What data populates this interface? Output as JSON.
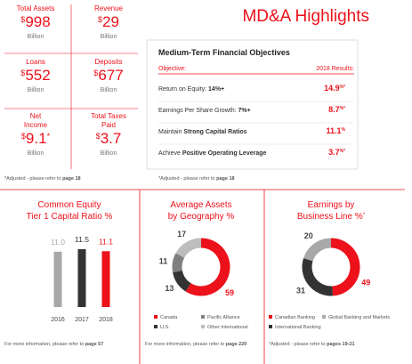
{
  "header": {
    "title": "MD&A Highlights"
  },
  "metrics": [
    {
      "label": [
        "Total Assets"
      ],
      "currency": "$",
      "amount": 998,
      "unit": "Billion"
    },
    {
      "label": [
        "Revenue"
      ],
      "currency": "$",
      "amount": 29,
      "unit": "Billion"
    },
    {
      "label": [
        "Loans"
      ],
      "currency": "$",
      "amount": 552,
      "unit": "Billion"
    },
    {
      "label": [
        "Deposits"
      ],
      "currency": "$",
      "amount": 677,
      "unit": "Billion"
    },
    {
      "label": [
        "Net",
        "Income"
      ],
      "currency": "$",
      "amount": 9.1,
      "note": "*",
      "unit": "Billion"
    },
    {
      "label": [
        "Total Taxes",
        "Paid"
      ],
      "currency": "$",
      "amount": 3.7,
      "unit": "Billion"
    }
  ],
  "metrics_footnote": {
    "text": "*Adjusted - please refer to ",
    "link": "page 18"
  },
  "objectives": {
    "title": "Medium-Term Financial Objectives",
    "header": [
      "Objective:",
      "2018 Results:"
    ],
    "rows": [
      {
        "lead": "Return on Equity: ",
        "bold": "14%+",
        "result": 14.9,
        "result_note": "%*"
      },
      {
        "lead": "Earnings Per Share Growth: ",
        "bold": "7%+",
        "result": 8.7,
        "result_note": "%*"
      },
      {
        "lead": "Maintain ",
        "bold": "Strong Capital Ratios",
        "result": 11.1,
        "result_note": "%"
      },
      {
        "lead": "Achieve ",
        "bold": "Positive Operating Leverage",
        "result": 3.7,
        "result_note": "%*"
      }
    ],
    "footnote": {
      "text": "*Adjusted - please refer to ",
      "link": "page 18"
    }
  },
  "capital_ratio": {
    "title": [
      "Common Equity",
      "Tier 1 Capital Ratio %"
    ],
    "categories": [
      "2016",
      "2017",
      "2018"
    ],
    "values": [
      11.0,
      11.5,
      11.1
    ],
    "value_labels": [
      "11.0",
      "11.5",
      "11.1"
    ],
    "colors": [
      "#a8a8a8",
      "#333333",
      "#ec111a"
    ],
    "footnote": {
      "text": "For more information, please refer to ",
      "link": "page 57"
    }
  },
  "geography": {
    "title": [
      "Average Assets",
      "by Geography %"
    ],
    "segments": [
      {
        "name": "Canada",
        "value": 59,
        "color": "#ec111a"
      },
      {
        "name": "U.S.",
        "value": 13,
        "color": "#333333"
      },
      {
        "name": "Pacific Alliance",
        "value": 11,
        "color": "#7f7f7f"
      },
      {
        "name": "Other International",
        "value": 17,
        "color": "#bdbdbd"
      }
    ],
    "footnote": {
      "text": "For more information, please refer to ",
      "link": "page 220"
    }
  },
  "business_line": {
    "title": [
      "Earnings by",
      "Business Line %"
    ],
    "title_note": "*",
    "segments": [
      {
        "name": "Canadian Banking",
        "value": 49,
        "color": "#ec111a"
      },
      {
        "name": "International Banking",
        "value": 31,
        "color": "#333333"
      },
      {
        "name": "Global Banking and Markets",
        "value": 20,
        "color": "#a8a8a8"
      }
    ],
    "footnote": {
      "text": "*Adjusted - please refer to ",
      "link": "pages 19-21"
    }
  }
}
